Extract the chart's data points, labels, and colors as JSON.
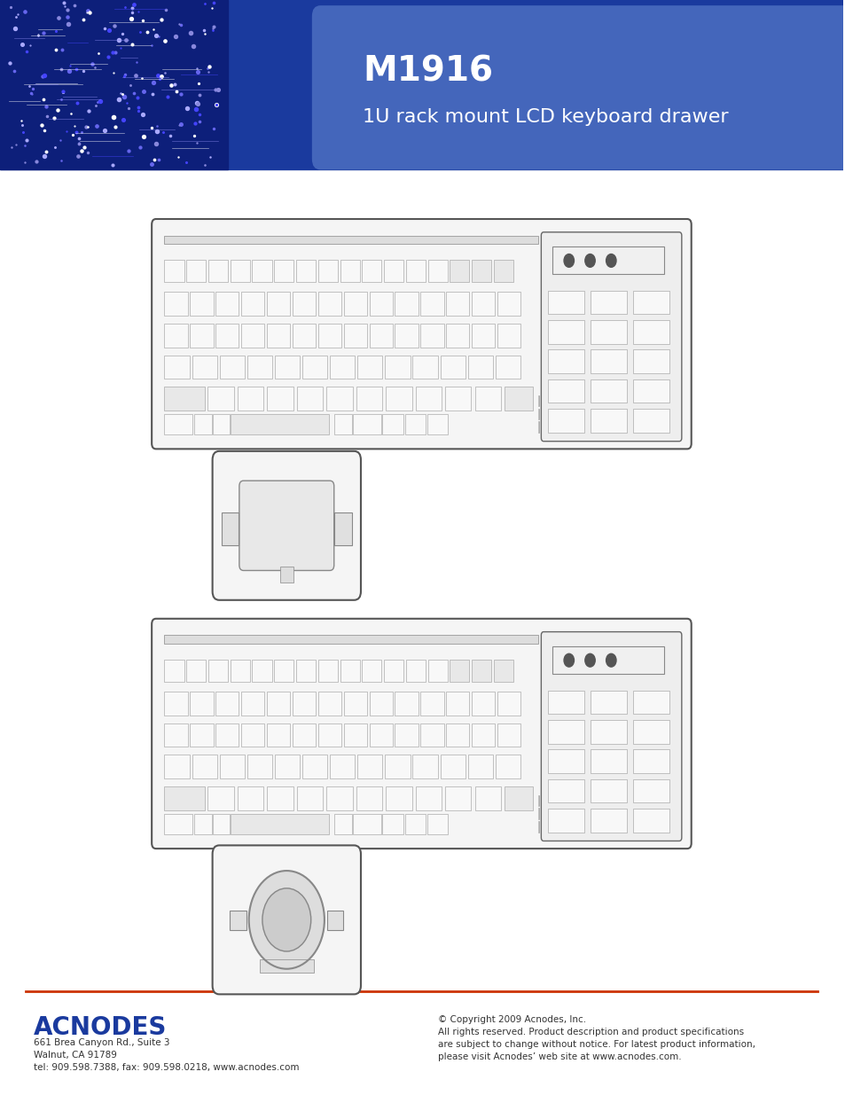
{
  "title": "M1916",
  "subtitle": "1U rack mount LCD keyboard drawer",
  "header_bg_color": "#1a3a9e",
  "page_bg": "#ffffff",
  "footer_line_color": "#cc3300",
  "acnodes_color": "#1a3a9e",
  "footer_address": "661 Brea Canyon Rd., Suite 3\nWalnut, CA 91789\ntel: 909.598.7388, fax: 909.598.0218, www.acnodes.com",
  "footer_copyright": "© Copyright 2009 Acnodes, Inc.\nAll rights reserved. Product description and product specifications\nare subject to change without notice. For latest product information,\nplease visit Acnodes’ web site at www.acnodes.com."
}
